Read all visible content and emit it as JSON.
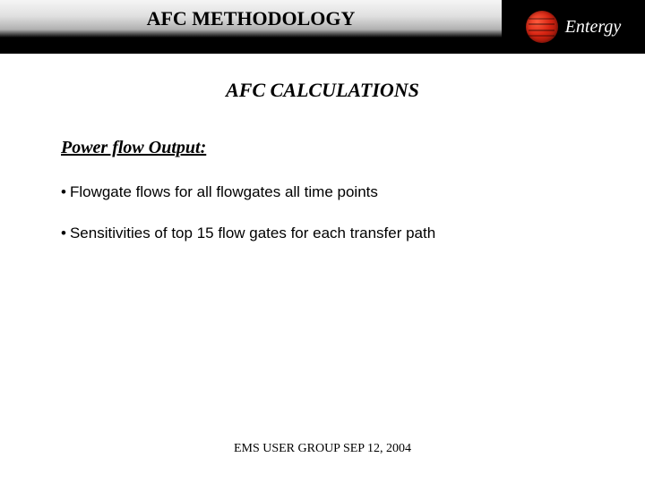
{
  "header": {
    "title": "AFC METHODOLOGY",
    "logo_text": "Entergy"
  },
  "subtitle": "AFC CALCULATIONS",
  "section_heading": "Power flow Output:",
  "bullets": [
    "Flowgate flows for all flowgates all time points",
    "Sensitivities of top 15 flow gates for each transfer path"
  ],
  "footer": "EMS USER GROUP SEP 12, 2004",
  "colors": {
    "logo_bg": "#000000",
    "logo_mark_gradient": [
      "#ff5a3c",
      "#d62412",
      "#7a0f05"
    ],
    "text": "#000000",
    "background": "#ffffff"
  }
}
